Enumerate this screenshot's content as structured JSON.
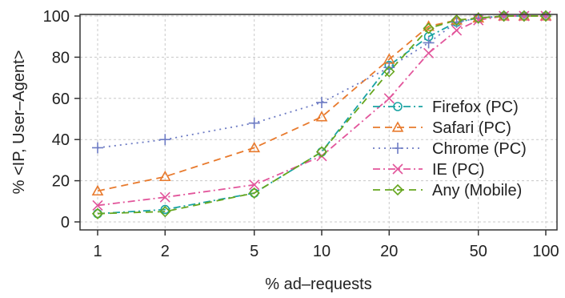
{
  "chart_data": {
    "type": "line",
    "xlabel": "% ad–requests",
    "ylabel": "% <IP, User–Agent>",
    "xscale": "log",
    "xlim": [
      1,
      100
    ],
    "ylim": [
      0,
      100
    ],
    "xticks": [
      1,
      2,
      5,
      10,
      20,
      50,
      100
    ],
    "yticks": [
      0,
      20,
      40,
      60,
      80,
      100
    ],
    "grid": true,
    "legend_position": "lower right",
    "series": [
      {
        "name": "Firefox (PC)",
        "color": "#1aa3a3",
        "linestyle": "dash-dot",
        "marker": "circle",
        "x": [
          1,
          2,
          5,
          10,
          20,
          30,
          40,
          50,
          65,
          80,
          100
        ],
        "y": [
          4,
          6,
          14,
          34,
          76,
          90,
          97,
          99,
          100,
          100,
          100
        ]
      },
      {
        "name": "Safari (PC)",
        "color": "#e87a2d",
        "linestyle": "dashed",
        "marker": "triangle",
        "x": [
          1,
          2,
          5,
          10,
          20,
          30,
          40,
          50,
          65,
          80,
          100
        ],
        "y": [
          15,
          22,
          36,
          51,
          79,
          95,
          98,
          99,
          100,
          100,
          100
        ]
      },
      {
        "name": "Chrome (PC)",
        "color": "#6e7cc4",
        "linestyle": "dotted",
        "marker": "plus",
        "x": [
          1,
          2,
          5,
          10,
          20,
          30,
          40,
          50,
          65,
          80,
          100
        ],
        "y": [
          36,
          40,
          48,
          58,
          75,
          87,
          97,
          99,
          100,
          100,
          100
        ]
      },
      {
        "name": "IE (PC)",
        "color": "#e2559b",
        "linestyle": "dash-dot",
        "marker": "x",
        "x": [
          1,
          2,
          5,
          10,
          20,
          30,
          40,
          50,
          65,
          80,
          100
        ],
        "y": [
          8,
          12,
          18,
          32,
          60,
          82,
          93,
          98,
          100,
          100,
          100
        ]
      },
      {
        "name": "Any (Mobile)",
        "color": "#66a61e",
        "linestyle": "dashed",
        "marker": "diamond",
        "x": [
          1,
          2,
          5,
          10,
          20,
          30,
          40,
          50,
          65,
          80,
          100
        ],
        "y": [
          4,
          5,
          14,
          34,
          73,
          94,
          98,
          99,
          100,
          100,
          100
        ]
      }
    ]
  }
}
